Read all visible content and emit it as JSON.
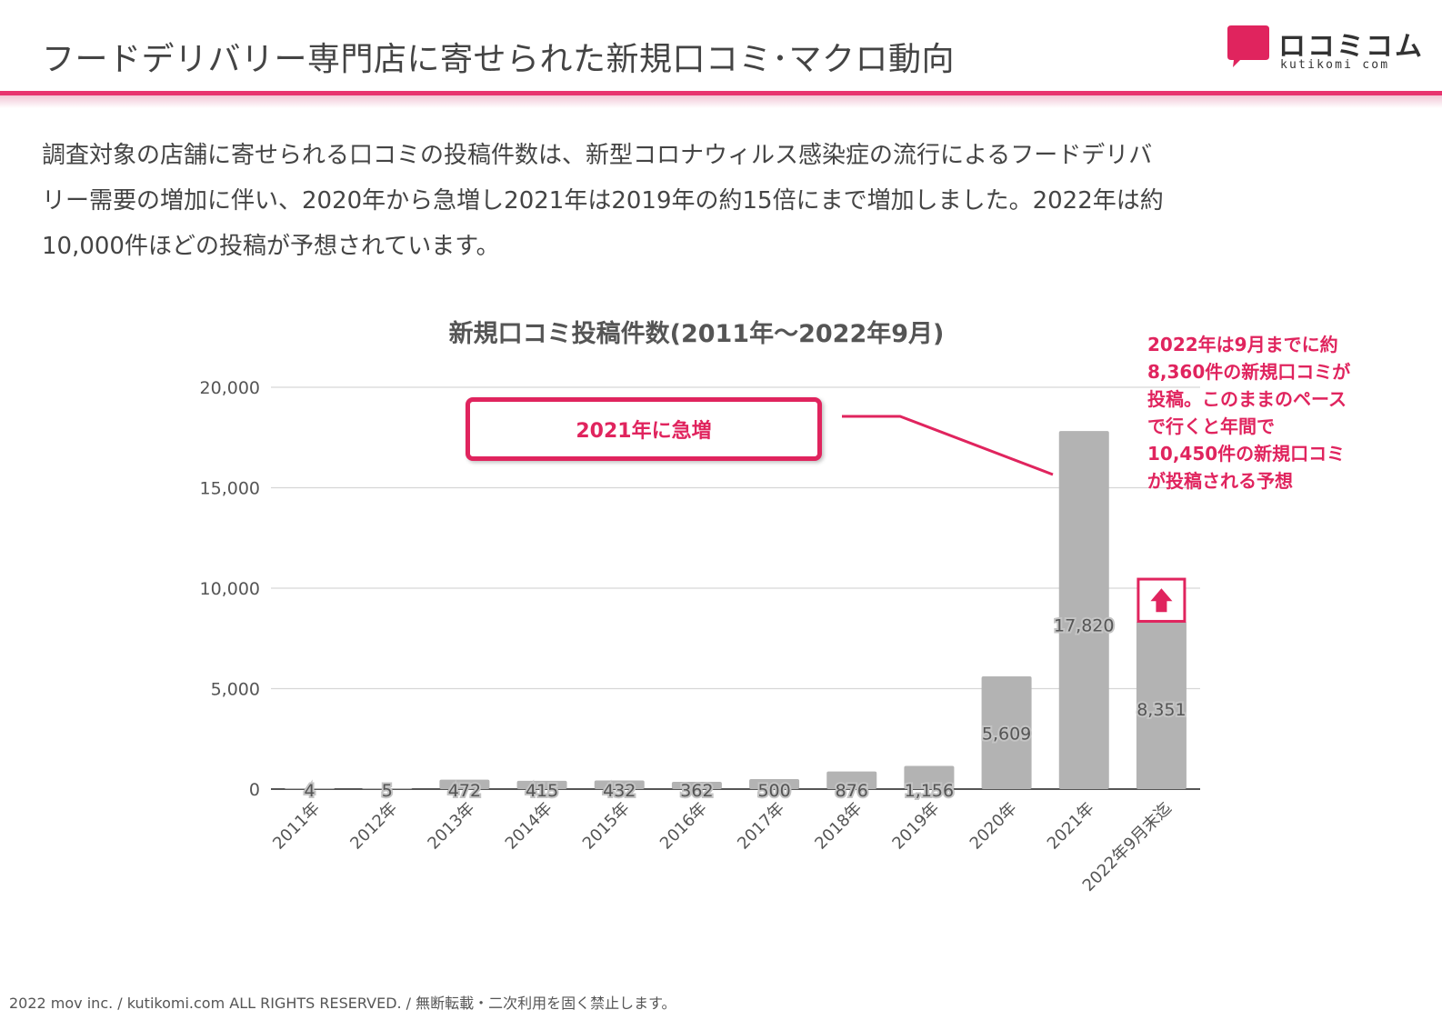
{
  "header": {
    "title": "フードデリバリー専門店に寄せられた新規口コミ･マクロ動向",
    "logo_text": "ロコミコム",
    "logo_sub": "kutikomi com"
  },
  "intro": {
    "lines": [
      "調査対象の店舗に寄せられる口コミの投稿件数は、新型コロナウィルス感染症の流行によるフードデリバ",
      "リー需要の増加に伴い、2020年から急増し2021年は2019年の約15倍にまで増加しました。2022年は約",
      "10,000件ほどの投稿が予想されています。"
    ]
  },
  "chart_data": {
    "type": "bar",
    "title": "新規口コミ投稿件数(2011年～2022年9月)",
    "categories": [
      "2011年",
      "2012年",
      "2013年",
      "2014年",
      "2015年",
      "2016年",
      "2017年",
      "2018年",
      "2019年",
      "2020年",
      "2021年",
      "2022年9月末迄"
    ],
    "values": [
      4,
      5,
      472,
      415,
      432,
      362,
      500,
      876,
      1156,
      5609,
      17820,
      8351
    ],
    "data_labels": [
      "4",
      "5",
      "472",
      "415",
      "432",
      "362",
      "500",
      "876",
      "1,156",
      "5,609",
      "17,820",
      "8,351"
    ],
    "y_ticks": [
      0,
      5000,
      10000,
      15000,
      20000
    ],
    "y_tick_labels": [
      "0",
      "5,000",
      "10,000",
      "15,000",
      "20,000"
    ],
    "ylim": [
      0,
      20000
    ],
    "xlabel": "",
    "ylabel": "",
    "grid": true,
    "bar_color": "#b3b3b3",
    "accent_color": "#e0245e",
    "projection": {
      "category": "2022年9月末迄",
      "projected_value": 10450
    }
  },
  "callout": {
    "label": "2021年に急増"
  },
  "note": {
    "lines": [
      "2022年は9月までに約",
      "8,360件の新規口コミが",
      "投稿。このままのペース",
      "で行くと年間で",
      "10,450件の新規口コミ",
      "が投稿される予想"
    ]
  },
  "footer": {
    "text": "2022 mov inc. / kutikomi.com ALL RIGHTS RESERVED. / 無断転載・二次利用を固く禁止します。"
  }
}
